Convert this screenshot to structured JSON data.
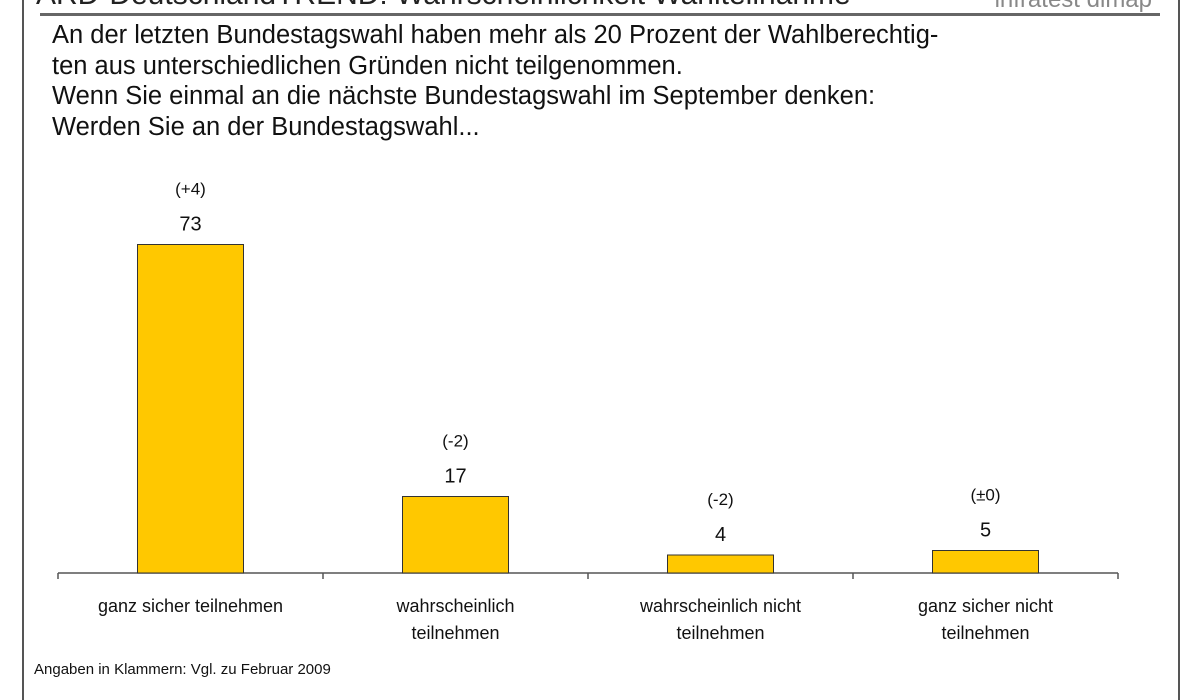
{
  "header": {
    "title": "ARD-DeutschlandTREND: Wahrscheinlichkeit Wahlteilnahme",
    "brand": "infratest dimap"
  },
  "question": [
    "An der letzten Bundestagswahl haben mehr als 20 Prozent der Wahlberechtig-",
    "ten aus unterschiedlichen Gründen nicht teilgenommen.",
    "Wenn Sie einmal an die nächste Bundestagswahl im September denken:",
    "Werden Sie an der Bundestagswahl..."
  ],
  "footnote": "Angaben in Klammern: Vgl. zu Februar 2009",
  "chart_data": {
    "type": "bar",
    "categories": [
      [
        "ganz sicher teilnehmen"
      ],
      [
        "wahrscheinlich",
        "teilnehmen"
      ],
      [
        "wahrscheinlich nicht",
        "teilnehmen"
      ],
      [
        "ganz sicher nicht",
        "teilnehmen"
      ]
    ],
    "values": [
      73,
      17,
      4,
      5
    ],
    "changes": [
      "(+4)",
      "(-2)",
      "(-2)",
      "(±0)"
    ],
    "bar_color": "#FFC800",
    "grid": false
  }
}
